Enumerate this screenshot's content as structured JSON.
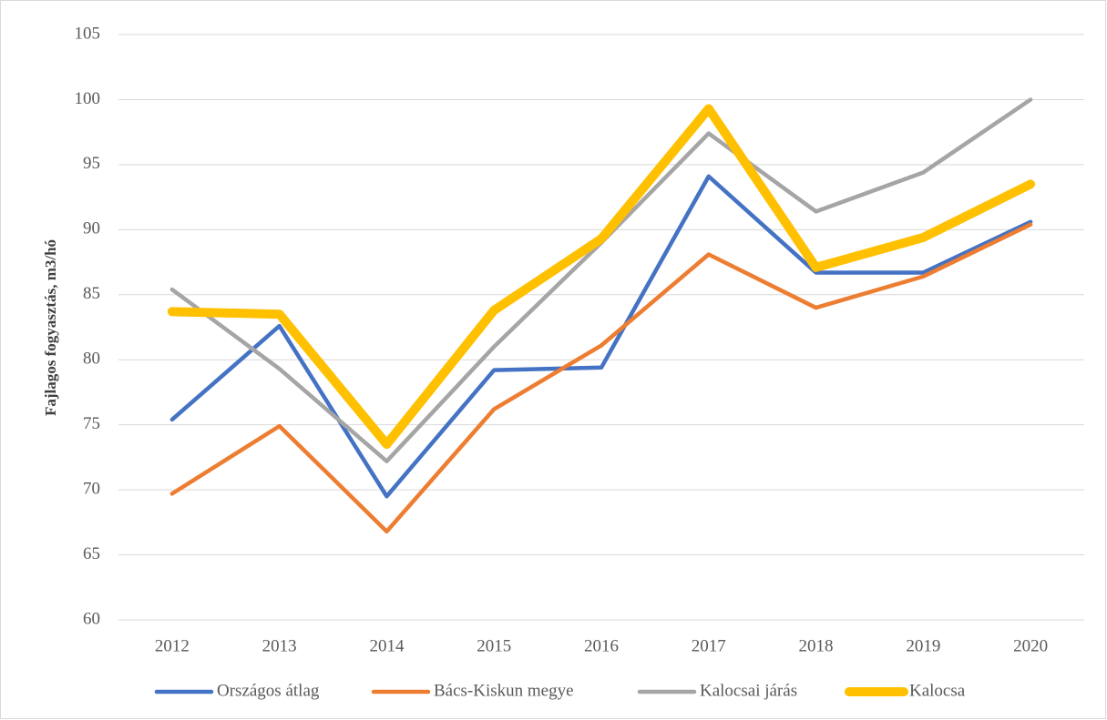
{
  "chart_data": {
    "type": "line",
    "y_label": "Fajlagos fogyasztás, m3/hó",
    "categories": [
      "2012",
      "2013",
      "2014",
      "2015",
      "2016",
      "2017",
      "2018",
      "2019",
      "2020"
    ],
    "series": [
      {
        "name": "Országos átlag",
        "color": "#4472c4",
        "values": [
          75.4,
          82.6,
          69.5,
          79.2,
          79.4,
          94.1,
          86.7,
          86.7,
          90.6
        ]
      },
      {
        "name": "Bács-Kiskun megye",
        "color": "#ed7d31",
        "values": [
          69.7,
          74.9,
          66.8,
          76.2,
          81.1,
          88.1,
          84.0,
          86.4,
          90.4
        ]
      },
      {
        "name": "Kalocsai járás",
        "color": "#a5a5a5",
        "values": [
          85.4,
          79.3,
          72.2,
          81.0,
          89.0,
          97.4,
          91.4,
          94.4,
          100.0
        ]
      },
      {
        "name": "Kalocsa",
        "color": "#ffc000",
        "values": [
          83.7,
          83.5,
          73.5,
          83.8,
          89.3,
          99.3,
          87.1,
          89.4,
          93.5
        ]
      }
    ],
    "ylim": [
      60,
      105
    ],
    "yticks": [
      60,
      65,
      70,
      75,
      80,
      85,
      90,
      95,
      100,
      105
    ],
    "grid": true,
    "legend": "bottom"
  }
}
